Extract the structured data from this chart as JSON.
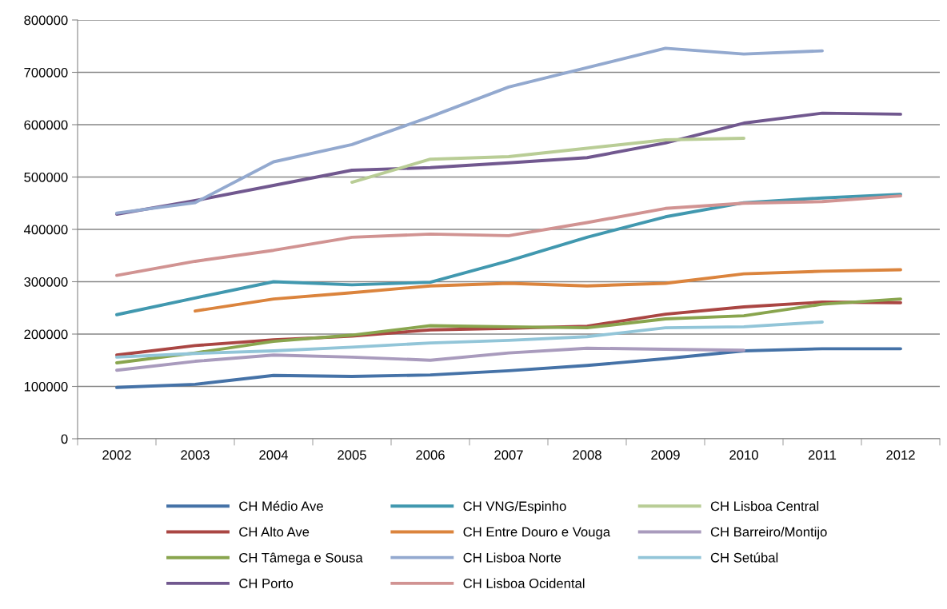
{
  "chart_data": {
    "type": "line",
    "categories": [
      "2002",
      "2003",
      "2004",
      "2005",
      "2006",
      "2007",
      "2008",
      "2009",
      "2010",
      "2011",
      "2012"
    ],
    "ylim": [
      0,
      800000
    ],
    "yticks": [
      0,
      100000,
      200000,
      300000,
      400000,
      500000,
      600000,
      700000,
      800000
    ],
    "grid": "y",
    "legend": "bottom",
    "marker": "none",
    "line_style": "solid",
    "series": [
      {
        "name": "CH Médio Ave",
        "color": "#4572a7",
        "values": [
          98000,
          104000,
          121000,
          119000,
          122000,
          130000,
          140000,
          153000,
          168000,
          172000,
          172000
        ]
      },
      {
        "name": "CH Alto Ave",
        "color": "#aa4643",
        "values": [
          160000,
          178000,
          189000,
          196000,
          208000,
          211000,
          215000,
          238000,
          252000,
          261000,
          260000
        ]
      },
      {
        "name": "CH Tâmega e Sousa",
        "color": "#89a54e",
        "values": [
          145000,
          164000,
          186000,
          198000,
          216000,
          214000,
          212000,
          229000,
          235000,
          257000,
          267000
        ]
      },
      {
        "name": "CH Porto",
        "color": "#71588f",
        "values": [
          429000,
          455000,
          484000,
          513000,
          518000,
          527000,
          537000,
          565000,
          603000,
          622000,
          620000
        ]
      },
      {
        "name": "CH VNG/Espinho",
        "color": "#4198af",
        "values": [
          237000,
          269000,
          300000,
          294000,
          299000,
          340000,
          385000,
          424000,
          451000,
          460000,
          467000
        ]
      },
      {
        "name": "CH Entre Douro e Vouga",
        "color": "#db843d",
        "values": [
          null,
          244000,
          267000,
          279000,
          292000,
          297000,
          292000,
          297000,
          315000,
          320000,
          323000
        ]
      },
      {
        "name": "CH Lisboa Norte",
        "color": "#93a9cf",
        "values": [
          431000,
          451000,
          529000,
          562000,
          615000,
          672000,
          709000,
          746000,
          735000,
          741000,
          null
        ]
      },
      {
        "name": "CH Lisboa Ocidental",
        "color": "#d19392",
        "values": [
          312000,
          339000,
          360000,
          385000,
          391000,
          388000,
          413000,
          440000,
          450000,
          453000,
          464000
        ]
      },
      {
        "name": "CH Lisboa Central",
        "color": "#b9cd96",
        "values": [
          null,
          null,
          null,
          490000,
          534000,
          539000,
          555000,
          571000,
          574000,
          null,
          null
        ]
      },
      {
        "name": "CH Barreiro/Montijo",
        "color": "#a99bbd",
        "values": [
          131000,
          148000,
          160000,
          156000,
          150000,
          164000,
          173000,
          171000,
          169000,
          null,
          null
        ]
      },
      {
        "name": "CH Setúbal",
        "color": "#92c5d8",
        "values": [
          156000,
          163000,
          168000,
          175000,
          183000,
          188000,
          195000,
          212000,
          214000,
          223000,
          null
        ]
      }
    ]
  }
}
